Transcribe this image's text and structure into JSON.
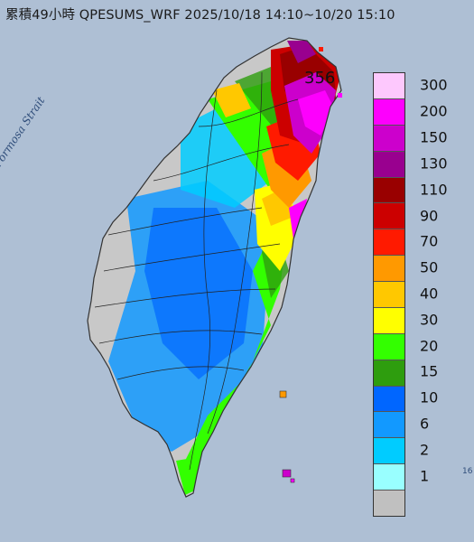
{
  "title": "累積49小時 QPESUMS_WRF 2025/10/18 14:10~10/20 15:10",
  "strait_label": "Formosa Strait",
  "max_value_label": "356",
  "edge_label": "16",
  "legend": {
    "levels": [
      {
        "label": "300",
        "color": "#fdc8fd"
      },
      {
        "label": "200",
        "color": "#fd00fd"
      },
      {
        "label": "150",
        "color": "#cc00cc"
      },
      {
        "label": "130",
        "color": "#99008f"
      },
      {
        "label": "110",
        "color": "#990000"
      },
      {
        "label": "90",
        "color": "#cc0000"
      },
      {
        "label": "70",
        "color": "#ff1a00"
      },
      {
        "label": "50",
        "color": "#ff9900"
      },
      {
        "label": "40",
        "color": "#ffc800"
      },
      {
        "label": "30",
        "color": "#ffff00"
      },
      {
        "label": "20",
        "color": "#33ff00"
      },
      {
        "label": "15",
        "color": "#2e9d0e"
      },
      {
        "label": "10",
        "color": "#0066ff"
      },
      {
        "label": "6",
        "color": "#1299ff"
      },
      {
        "label": "2",
        "color": "#00ccff"
      },
      {
        "label": "1",
        "color": "#99ffff"
      },
      {
        "label": "",
        "color": "#c0c0c0"
      }
    ]
  },
  "colors": {
    "sea": "#aebfd4",
    "land_dry": "#c8c8c8",
    "land_edge": "#333333"
  }
}
